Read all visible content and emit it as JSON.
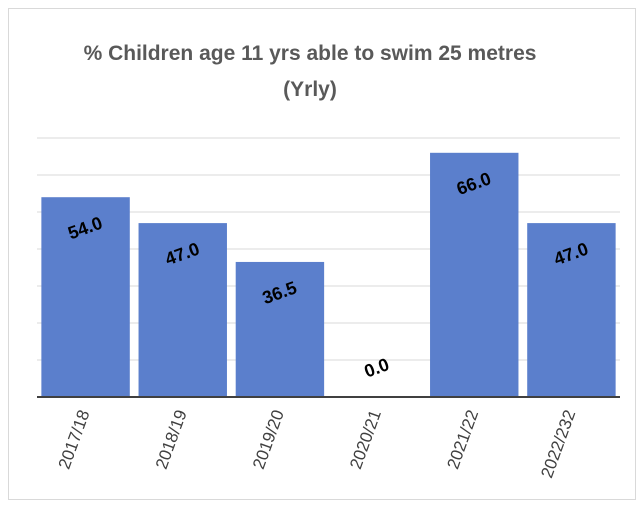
{
  "chart_data": {
    "type": "bar",
    "title": "% Children age 11 yrs able to swim 25 metres (Yrly)",
    "categories": [
      "2017/18",
      "2018/19",
      "2019/20",
      "2020/21",
      "2021/22",
      "2022/232"
    ],
    "values": [
      54,
      47,
      36.5,
      0,
      66,
      47
    ],
    "value_labels": [
      "54.0",
      "47.0",
      "36.5",
      "0.0",
      "66.0",
      "47.0"
    ],
    "color": "#5b7fcc",
    "ylim": [
      0,
      70
    ],
    "yticks": [
      0,
      10,
      20,
      30,
      40,
      50,
      60,
      70
    ],
    "grid": true
  }
}
